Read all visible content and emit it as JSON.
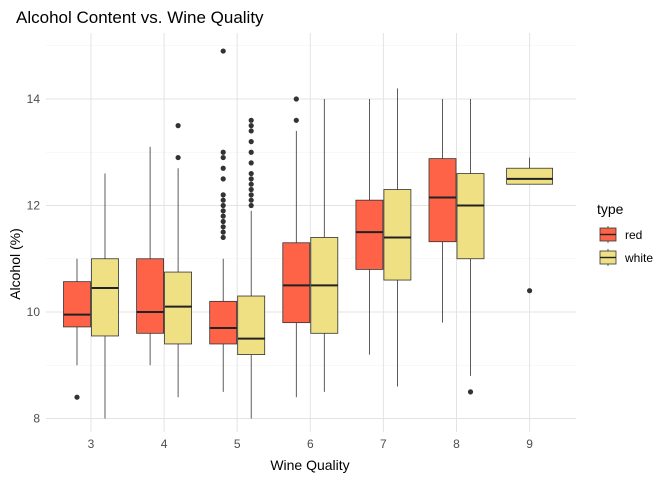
{
  "chart_data": {
    "type": "boxplot",
    "title": "Alcohol Content vs. Wine Quality",
    "xlabel": "Wine Quality",
    "ylabel": "Alcohol (%)",
    "categories": [
      "3",
      "4",
      "5",
      "6",
      "7",
      "8",
      "9"
    ],
    "y_ticks": [
      8,
      10,
      12,
      14
    ],
    "ylim": [
      7.8,
      15.3
    ],
    "grid": true,
    "legend": {
      "title": "type",
      "position": "right"
    },
    "series": [
      {
        "name": "red",
        "color": "#FF6347",
        "boxes": [
          {
            "category": "3",
            "whisker_low": 9.0,
            "q1": 9.72,
            "median": 9.95,
            "q3": 10.57,
            "whisker_high": 11.0,
            "outliers": [
              8.4
            ]
          },
          {
            "category": "4",
            "whisker_low": 9.0,
            "q1": 9.6,
            "median": 10.0,
            "q3": 11.0,
            "whisker_high": 13.1,
            "outliers": []
          },
          {
            "category": "5",
            "whisker_low": 8.5,
            "q1": 9.4,
            "median": 9.7,
            "q3": 10.2,
            "whisker_high": 11.0,
            "outliers": [
              11.4,
              11.5,
              11.6,
              11.7,
              11.8,
              11.9,
              12.0,
              12.1,
              12.2,
              12.5,
              12.7,
              12.9,
              13.0,
              14.9
            ]
          },
          {
            "category": "6",
            "whisker_low": 8.4,
            "q1": 9.8,
            "median": 10.5,
            "q3": 11.3,
            "whisker_high": 13.4,
            "outliers": [
              13.6,
              14.0
            ]
          },
          {
            "category": "7",
            "whisker_low": 9.2,
            "q1": 10.8,
            "median": 11.5,
            "q3": 12.1,
            "whisker_high": 14.0,
            "outliers": []
          },
          {
            "category": "8",
            "whisker_low": 9.8,
            "q1": 11.32,
            "median": 12.15,
            "q3": 12.88,
            "whisker_high": 14.0,
            "outliers": []
          }
        ]
      },
      {
        "name": "white",
        "color": "#F0E084",
        "boxes": [
          {
            "category": "3",
            "whisker_low": 8.0,
            "q1": 9.55,
            "median": 10.45,
            "q3": 11.0,
            "whisker_high": 12.6,
            "outliers": []
          },
          {
            "category": "4",
            "whisker_low": 8.4,
            "q1": 9.4,
            "median": 10.1,
            "q3": 10.75,
            "whisker_high": 12.7,
            "outliers": [
              12.9,
              13.5
            ]
          },
          {
            "category": "5",
            "whisker_low": 8.0,
            "q1": 9.2,
            "median": 9.5,
            "q3": 10.3,
            "whisker_high": 11.9,
            "outliers": [
              12.0,
              12.1,
              12.2,
              12.3,
              12.4,
              12.5,
              12.6,
              12.8,
              13.0,
              13.2,
              13.4,
              13.5,
              13.6
            ]
          },
          {
            "category": "6",
            "whisker_low": 8.5,
            "q1": 9.6,
            "median": 10.5,
            "q3": 11.4,
            "whisker_high": 14.0,
            "outliers": []
          },
          {
            "category": "7",
            "whisker_low": 8.6,
            "q1": 10.6,
            "median": 11.4,
            "q3": 12.3,
            "whisker_high": 14.2,
            "outliers": []
          },
          {
            "category": "8",
            "whisker_low": 8.8,
            "q1": 11.0,
            "median": 12.0,
            "q3": 12.6,
            "whisker_high": 14.0,
            "outliers": [
              8.5
            ]
          },
          {
            "category": "9",
            "whisker_low": 12.4,
            "q1": 12.4,
            "median": 12.5,
            "q3": 12.7,
            "whisker_high": 12.9,
            "outliers": [
              10.4
            ]
          }
        ]
      }
    ]
  }
}
